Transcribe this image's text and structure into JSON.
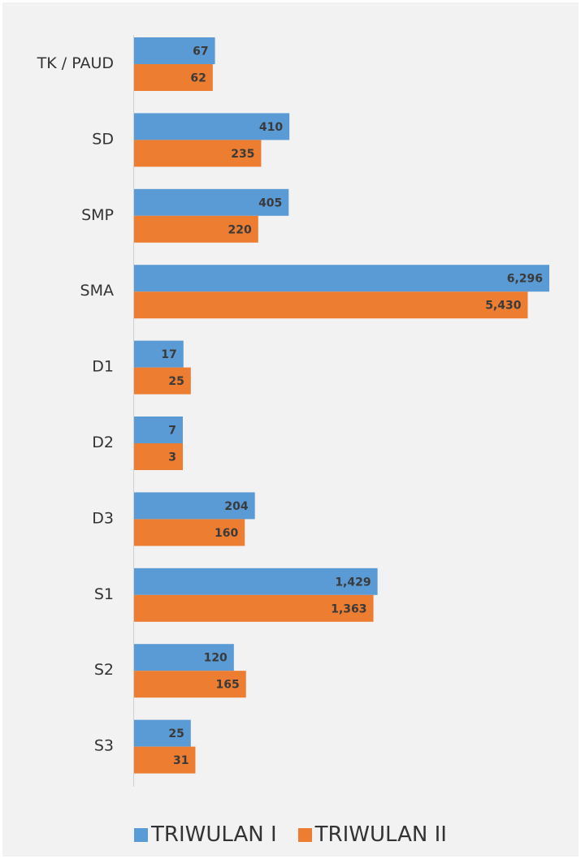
{
  "chart_data": {
    "type": "bar",
    "orientation": "horizontal",
    "categories": [
      "TK / PAUD",
      "SD",
      "SMP",
      "SMA",
      "D1",
      "D2",
      "D3",
      "S1",
      "S2",
      "S3"
    ],
    "series": [
      {
        "name": "TRIWULAN I",
        "color": "#5b9bd5",
        "values": [
          67,
          410,
          405,
          6296,
          17,
          7,
          204,
          1429,
          120,
          25
        ],
        "labels": [
          "67",
          "410",
          "405",
          "6,296",
          "17",
          "7",
          "204",
          "1,429",
          "120",
          "25"
        ]
      },
      {
        "name": "TRIWULAN II",
        "color": "#ed7d31",
        "values": [
          62,
          235,
          220,
          5430,
          25,
          3,
          160,
          1363,
          165,
          31
        ],
        "labels": [
          "62",
          "235",
          "220",
          "5,430",
          "25",
          "3",
          "160",
          "1,363",
          "165",
          "31"
        ]
      }
    ],
    "legend": "bottom",
    "grid": false
  }
}
